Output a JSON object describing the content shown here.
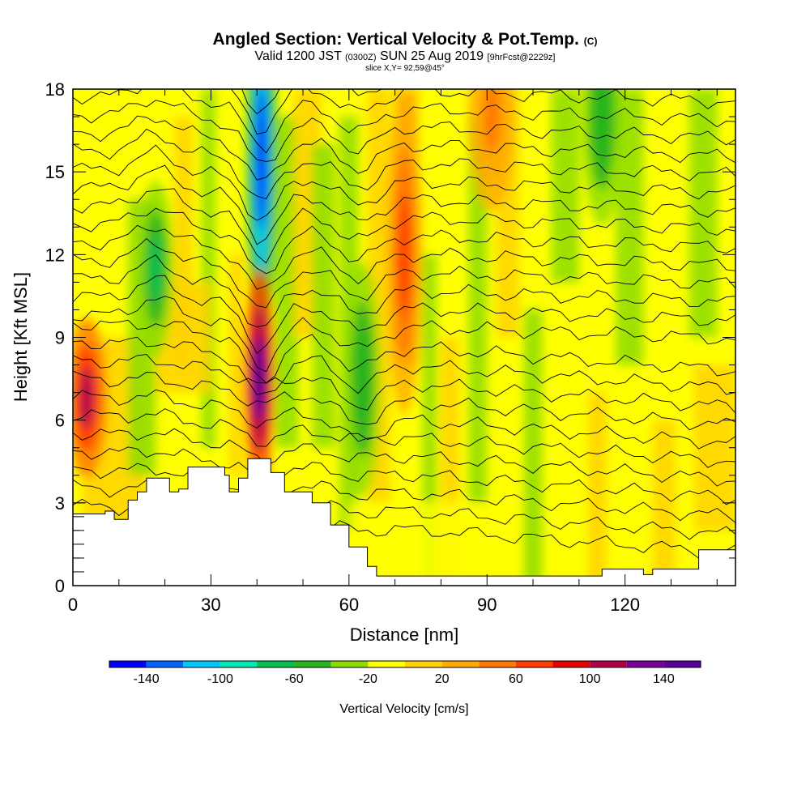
{
  "header": {
    "title": "Angled Section: Vertical Velocity & Pot.Temp.",
    "title_mark": "(C)",
    "subtitle_main": "Valid 1200 JST",
    "subtitle_z": "(0300Z)",
    "subtitle_date": "SUN 25 Aug 2019",
    "subtitle_fcst": "[9hrFcst@2229z]",
    "slice": "slice X,Y= 92,59@45°"
  },
  "chart_data": {
    "type": "heatmap",
    "xlabel": "Distance [nm]",
    "ylabel": "Height [Kft MSL]",
    "xlim": [
      0,
      144
    ],
    "ylim": [
      0,
      18
    ],
    "x_ticks": [
      "0",
      "30",
      "60",
      "90",
      "120"
    ],
    "x_tick_values": [
      0,
      30,
      60,
      90,
      120
    ],
    "y_ticks": [
      "0",
      "3",
      "6",
      "9",
      "12",
      "15",
      "18"
    ],
    "y_tick_values": [
      0,
      3,
      6,
      9,
      12,
      15,
      18
    ],
    "colorbar": {
      "title": "Vertical Velocity [cm/s]",
      "levels": [
        -160,
        -140,
        -120,
        -100,
        -80,
        -60,
        -40,
        -20,
        0,
        20,
        40,
        60,
        80,
        100,
        120,
        140,
        160
      ],
      "colors": [
        "#0000ff",
        "#0064ff",
        "#00c8ff",
        "#00e6b4",
        "#00be50",
        "#28b41e",
        "#8cdc00",
        "#ffff00",
        "#ffd200",
        "#ffaa00",
        "#ff7800",
        "#ff3c00",
        "#e60000",
        "#b40046",
        "#780096",
        "#5a009b"
      ],
      "labels": [
        "-140",
        "-100",
        "-60",
        "-20",
        "20",
        "60",
        "100",
        "140"
      ],
      "label_values": [
        -140,
        -100,
        -60,
        -20,
        20,
        60,
        100,
        140
      ]
    },
    "velocity_features": [
      {
        "x": 3,
        "y": 6.8,
        "value": 100
      },
      {
        "x": 18,
        "y": 11.5,
        "value": -80
      },
      {
        "x": 41,
        "y": 15.5,
        "value": -150
      },
      {
        "x": 40.5,
        "y": 7.5,
        "value": 150
      },
      {
        "x": 63,
        "y": 7.5,
        "value": -60
      },
      {
        "x": 72,
        "y": 12,
        "value": 60
      },
      {
        "x": 91,
        "y": 17,
        "value": 50
      },
      {
        "x": 115,
        "y": 17,
        "value": -60
      }
    ],
    "terrain": [
      [
        0,
        2.6
      ],
      [
        7,
        2.7
      ],
      [
        9,
        2.4
      ],
      [
        12,
        3.1
      ],
      [
        14,
        3.4
      ],
      [
        16,
        3.9
      ],
      [
        20,
        3.9
      ],
      [
        21,
        3.4
      ],
      [
        23,
        3.5
      ],
      [
        25,
        4.3
      ],
      [
        30,
        4.3
      ],
      [
        33,
        4.0
      ],
      [
        34,
        3.4
      ],
      [
        36,
        3.9
      ],
      [
        38,
        4.6
      ],
      [
        41,
        4.6
      ],
      [
        43,
        4.1
      ],
      [
        46,
        3.4
      ],
      [
        52,
        3.0
      ],
      [
        56,
        2.2
      ],
      [
        60,
        1.4
      ],
      [
        64,
        0.7
      ],
      [
        66,
        0.35
      ],
      [
        90,
        0.35
      ],
      [
        100,
        0.35
      ],
      [
        114,
        0.35
      ],
      [
        115,
        0.6
      ],
      [
        120,
        0.6
      ],
      [
        124,
        0.4
      ],
      [
        126,
        0.6
      ],
      [
        136,
        1.3
      ],
      [
        144,
        1.3
      ]
    ]
  }
}
